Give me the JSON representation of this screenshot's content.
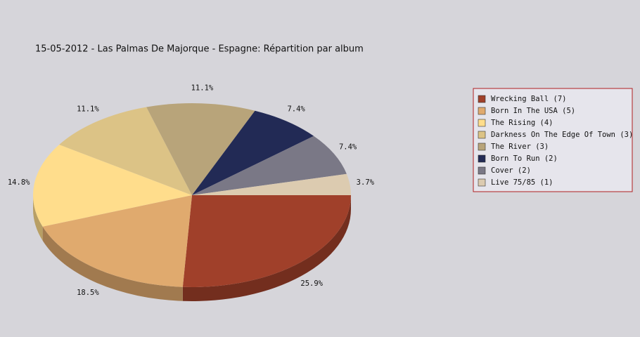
{
  "chart_data": {
    "type": "pie",
    "title": "15-05-2012 - Las Palmas De Majorque - Espagne:  Répartition par album",
    "categories": [
      "Wrecking Ball (7)",
      "Born In The USA (5)",
      "The Rising (4)",
      "Darkness On The Edge Of Town (3)",
      "The River (3)",
      "Born To Run (2)",
      "Cover (2)",
      "Live 75/85 (1)"
    ],
    "values": [
      25.9,
      18.5,
      14.8,
      11.1,
      11.1,
      7.4,
      7.4,
      3.7
    ],
    "value_labels": [
      "25.9%",
      "18.5%",
      "14.8%",
      "11.1%",
      "11.1%",
      "7.4%",
      "7.4%",
      "3.7%"
    ],
    "colors": [
      "#a0402a",
      "#e0aa6e",
      "#ffdd8c",
      "#dcc386",
      "#b8a47a",
      "#222a55",
      "#7a7886",
      "#dccbb0"
    ],
    "legend": "right"
  }
}
